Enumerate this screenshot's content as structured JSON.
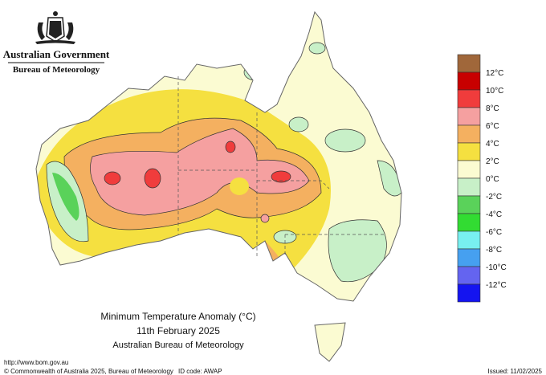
{
  "header": {
    "government": "Australian Government",
    "agency": "Bureau of Meteorology"
  },
  "map": {
    "title": "Minimum Temperature Anomaly (°C)",
    "date": "11th February 2025",
    "source": "Australian Bureau of Meteorology"
  },
  "legend": {
    "colors": [
      "#a0673a",
      "#c80000",
      "#f03c3c",
      "#f5a0a0",
      "#f4b060",
      "#f5e040",
      "#fbfbd2",
      "#c8f0c8",
      "#5ad25a",
      "#32dc32",
      "#78f0f0",
      "#46a0f0",
      "#6464f0",
      "#1414f0"
    ],
    "labels": [
      "12°C",
      "10°C",
      "8°C",
      "6°C",
      "4°C",
      "2°C",
      "0°C",
      "-2°C",
      "-4°C",
      "-6°C",
      "-8°C",
      "-10°C",
      "-12°C"
    ]
  },
  "footer": {
    "url": "http://www.bom.gov.au",
    "copyright": "© Commonwealth of Australia 2025, Bureau of Meteorology",
    "id_code": "ID code: AWAP",
    "issued": "Issued: 11/02/2025"
  }
}
